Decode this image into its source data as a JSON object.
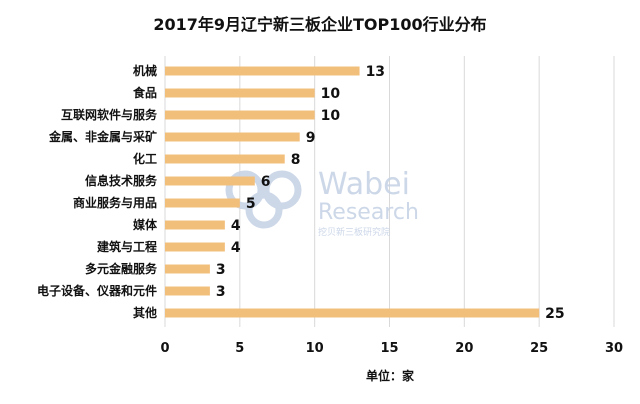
{
  "chart_data": {
    "type": "bar",
    "orientation": "horizontal",
    "title": "2017年9月辽宁新三板企业TOP100行业分布",
    "xlabel": "单位：家",
    "ylabel": "",
    "categories": [
      "机械",
      "食品",
      "互联网软件与服务",
      "金属、非金属与采矿",
      "化工",
      "信息技术服务",
      "商业服务与用品",
      "媒体",
      "建筑与工程",
      "多元金融服务",
      "电子设备、仪器和元件",
      "其他"
    ],
    "values": [
      13,
      10,
      10,
      9,
      8,
      6,
      5,
      4,
      4,
      3,
      3,
      25
    ],
    "xlim": [
      0,
      30
    ],
    "xticks": [
      "0",
      "5",
      "10",
      "15",
      "20",
      "25",
      "30"
    ],
    "grid": "vertical",
    "legend": "none",
    "data_labels": true,
    "bar_color": "#f2bf7b",
    "watermark": {
      "line1": "Wabei",
      "line2": "Research",
      "line3": "挖贝新三板研究院"
    }
  }
}
